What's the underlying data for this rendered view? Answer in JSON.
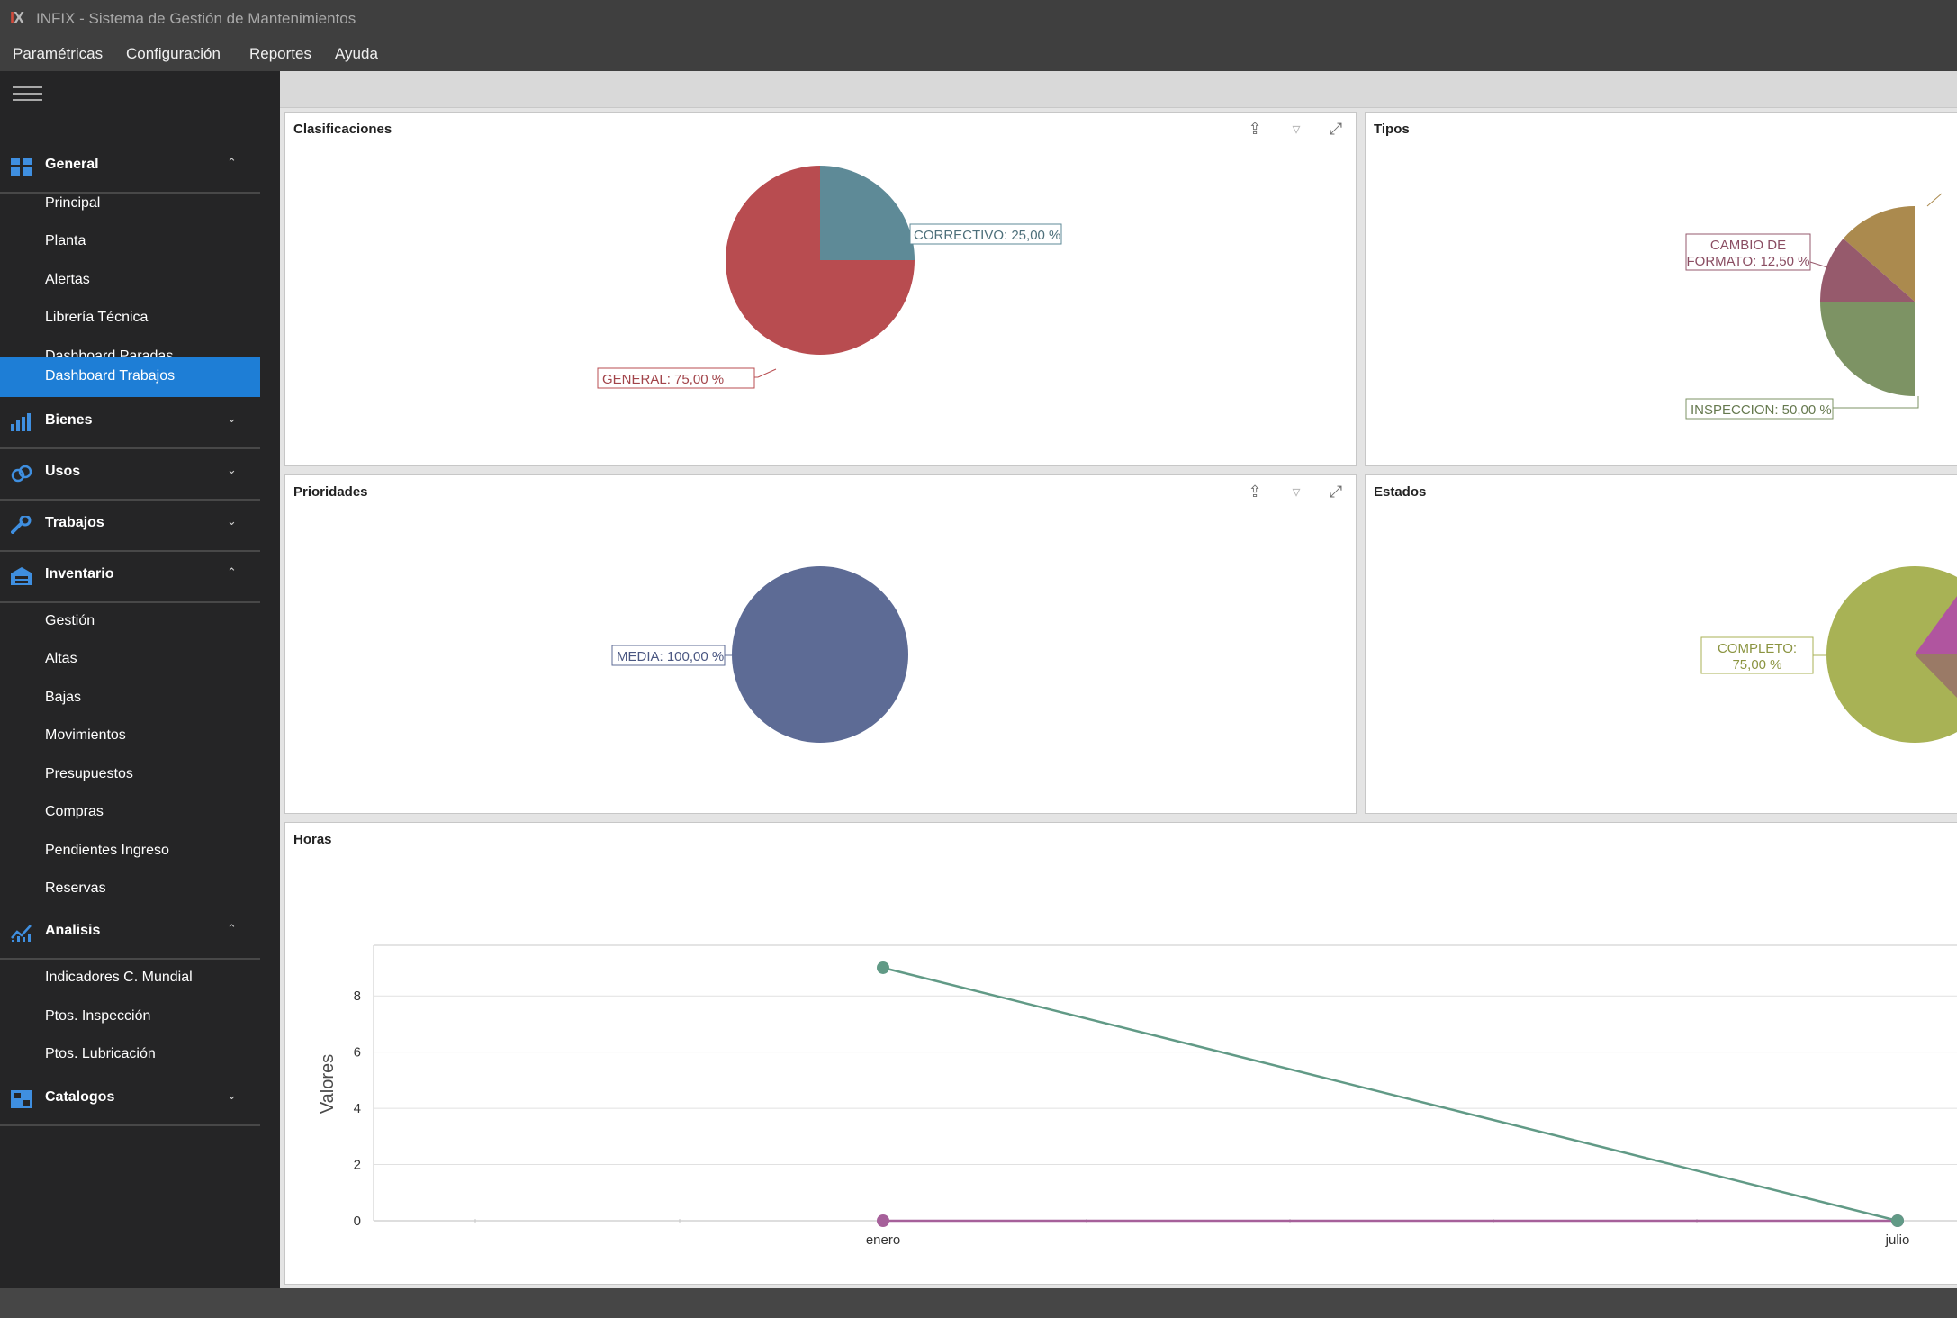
{
  "app": {
    "logo": "IX",
    "title": "INFIX - Sistema de Gestión de Mantenimientos"
  },
  "menu": [
    "Paramétricas",
    "Configuración",
    "Reportes",
    "Ayuda"
  ],
  "sidebar": {
    "groups": {
      "general": {
        "label": "General",
        "expanded": true,
        "items": [
          "Principal",
          "Planta",
          "Alertas",
          "Librería Técnica",
          "Dashboard Paradas",
          "Dashboard Trabajos"
        ],
        "active": "Dashboard Trabajos"
      },
      "bienes": {
        "label": "Bienes",
        "expanded": false
      },
      "usos": {
        "label": "Usos",
        "expanded": false
      },
      "trabajos": {
        "label": "Trabajos",
        "expanded": false
      },
      "inventario": {
        "label": "Inventario",
        "expanded": true,
        "items": [
          "Gestión",
          "Altas",
          "Bajas",
          "Movimientos",
          "Presupuestos",
          "Compras",
          "Pendientes Ingreso",
          "Reservas"
        ]
      },
      "analisis": {
        "label": "Analisis",
        "expanded": true,
        "items": [
          "Indicadores C. Mundial",
          "Ptos. Inspección",
          "Ptos. Lubricación"
        ]
      },
      "catalogos": {
        "label": "Catalogos",
        "expanded": false
      }
    }
  },
  "colors": {
    "accent": "#1e7ed6",
    "correctivo": "#5e8a97",
    "general": "#b84c50",
    "cambio_formato": "#965a6c",
    "tipos_top": "#ab8a4e",
    "inspeccion": "#7d9364",
    "media": "#5d6b95",
    "completo": "#a8b255",
    "estados_magenta": "#b0559f",
    "estados_brown": "#9a7a66",
    "line_green": "#619a86",
    "line_purple": "#a6609a"
  },
  "panels": {
    "clasificaciones": {
      "title": "Clasificaciones"
    },
    "tipos": {
      "title": "Tipos"
    },
    "prioridades": {
      "title": "Prioridades"
    },
    "estados": {
      "title": "Estados"
    },
    "horas": {
      "title": "Horas"
    }
  },
  "chart_data": [
    {
      "type": "pie",
      "title": "Clasificaciones",
      "slices": [
        {
          "label": "CORRECTIVO",
          "value": 25.0,
          "text": "CORRECTIVO: 25,00 %"
        },
        {
          "label": "GENERAL",
          "value": 75.0,
          "text": "GENERAL: 75,00 %"
        }
      ]
    },
    {
      "type": "pie",
      "title": "Tipos",
      "slices": [
        {
          "label": "CAMBIO DE FORMATO",
          "value": 12.5,
          "text": "CAMBIO DE FORMATO: 12,50 %"
        },
        {
          "label": "INSPECCION",
          "value": 50.0,
          "text": "INSPECCION: 50,00 %"
        }
      ]
    },
    {
      "type": "pie",
      "title": "Prioridades",
      "slices": [
        {
          "label": "MEDIA",
          "value": 100.0,
          "text": "MEDIA: 100,00 %"
        }
      ]
    },
    {
      "type": "pie",
      "title": "Estados",
      "slices": [
        {
          "label": "COMPLETO",
          "value": 75.0,
          "text": "COMPLETO: 75,00 %"
        }
      ]
    },
    {
      "type": "line",
      "title": "Horas",
      "ylabel": "Valores",
      "ylim": [
        0,
        9.8
      ],
      "yticks": [
        0,
        2,
        4,
        6,
        8
      ],
      "categories": [
        "enero",
        "julio"
      ],
      "series": [
        {
          "values": [
            9,
            0
          ]
        },
        {
          "values": [
            0,
            0
          ]
        }
      ]
    }
  ]
}
